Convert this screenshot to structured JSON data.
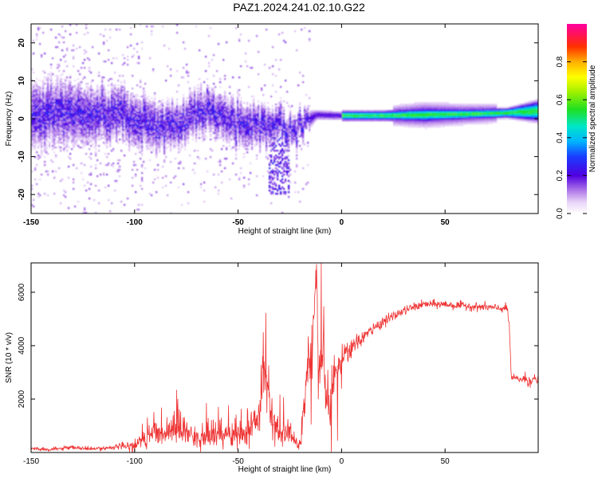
{
  "title": "PAZ1.2024.241.02.10.G22",
  "colors": {
    "snr_line": "#ee3333",
    "ridge_core": "#ff2222",
    "background": "#ffffff"
  },
  "chart_data": [
    {
      "type": "heatmap",
      "xlabel": "Height of straight line (km)",
      "ylabel": "Frequency (Hz)",
      "xlim": [
        -150,
        95
      ],
      "ylim": [
        -25,
        25
      ],
      "xticks": [
        -150,
        -100,
        -50,
        0,
        50
      ],
      "xtick_labels": [
        "-150",
        "-100",
        "-50",
        "0",
        "50"
      ],
      "yticks": [
        -20,
        -10,
        0,
        10,
        20
      ],
      "ytick_labels": [
        "-20",
        "-10",
        "0",
        "10",
        "20"
      ],
      "colorbar": {
        "label": "Normalized spectral amplitude",
        "range": [
          0,
          1
        ],
        "ticks": [
          0.0,
          0.2,
          0.4,
          0.6,
          0.8
        ],
        "tick_labels": [
          "0.0",
          "0.2",
          "0.4",
          "0.6",
          "0.8"
        ],
        "colormap": "rainbow-with-light-purple-low"
      },
      "ridge": [
        {
          "x": -150,
          "f": 1.0,
          "amp": 0.2,
          "spread": 5.0
        },
        {
          "x": -140,
          "f": 1.5,
          "amp": 0.22,
          "spread": 5.0
        },
        {
          "x": -125,
          "f": 1.0,
          "amp": 0.24,
          "spread": 4.5
        },
        {
          "x": -110,
          "f": 1.5,
          "amp": 0.26,
          "spread": 4.0
        },
        {
          "x": -95,
          "f": -1.0,
          "amp": 0.25,
          "spread": 4.0
        },
        {
          "x": -80,
          "f": -2.0,
          "amp": 0.3,
          "spread": 3.5
        },
        {
          "x": -65,
          "f": 2.5,
          "amp": 0.32,
          "spread": 3.5
        },
        {
          "x": -50,
          "f": -1.5,
          "amp": 0.3,
          "spread": 3.5
        },
        {
          "x": -35,
          "f": -2.0,
          "amp": 0.28,
          "spread": 3.0
        },
        {
          "x": -25,
          "f": -3.0,
          "amp": 0.3,
          "spread": 2.5
        },
        {
          "x": -18,
          "f": -1.0,
          "amp": 0.35,
          "spread": 2.0
        },
        {
          "x": -12,
          "f": 1.0,
          "amp": 0.8,
          "spread": 0.8
        },
        {
          "x": 0,
          "f": 0.8,
          "amp": 0.85,
          "spread": 0.7
        },
        {
          "x": 20,
          "f": 0.8,
          "amp": 0.9,
          "spread": 0.7
        },
        {
          "x": 40,
          "f": 1.0,
          "amp": 0.55,
          "spread": 1.0
        },
        {
          "x": 60,
          "f": 1.2,
          "amp": 0.65,
          "spread": 0.8
        },
        {
          "x": 80,
          "f": 1.5,
          "amp": 0.85,
          "spread": 0.7
        },
        {
          "x": 95,
          "f": 2.0,
          "amp": 0.55,
          "spread": 1.5
        }
      ]
    },
    {
      "type": "line",
      "xlabel": "Height of straight line (km)",
      "ylabel": "SNR (10 * v/v)",
      "xlim": [
        -150,
        95
      ],
      "ylim": [
        0,
        7100
      ],
      "xticks": [
        -150,
        -100,
        -50,
        0,
        50
      ],
      "xtick_labels": [
        "-150",
        "-100",
        "-50",
        "0",
        "50"
      ],
      "yticks": [
        2000,
        4000,
        6000
      ],
      "ytick_labels": [
        "2000",
        "4000",
        "6000"
      ],
      "series": [
        {
          "x": [
            -150,
            -140,
            -130,
            -120,
            -110,
            -100,
            -95,
            -90,
            -85,
            -80,
            -75,
            -70,
            -65,
            -60,
            -55,
            -50,
            -45,
            -40,
            -37,
            -34,
            -30,
            -25,
            -20,
            -18,
            -16,
            -14,
            -12,
            -11,
            -10,
            -8,
            -6,
            -4,
            -2,
            0,
            5,
            10,
            15,
            20,
            25,
            30,
            35,
            40,
            45,
            50,
            55,
            60,
            65,
            70,
            75,
            80,
            81,
            82,
            85,
            88,
            90,
            92,
            95
          ],
          "y": [
            150,
            120,
            180,
            130,
            200,
            250,
            450,
            650,
            700,
            800,
            650,
            500,
            550,
            600,
            650,
            550,
            800,
            1400,
            3000,
            1200,
            800,
            700,
            200,
            2000,
            3200,
            4200,
            6600,
            2500,
            4000,
            2800,
            1500,
            2600,
            3000,
            3400,
            3900,
            4300,
            4600,
            4900,
            5100,
            5300,
            5450,
            5550,
            5550,
            5550,
            5500,
            5500,
            5450,
            5450,
            5400,
            5400,
            4800,
            2800,
            2750,
            2750,
            2700,
            2750,
            2700
          ],
          "noise_amplitude": [
            80,
            60,
            70,
            60,
            80,
            200,
            300,
            400,
            400,
            450,
            400,
            350,
            350,
            350,
            350,
            350,
            500,
            700,
            900,
            600,
            500,
            450,
            150,
            800,
            1000,
            1200,
            700,
            1000,
            1200,
            1000,
            900,
            800,
            700,
            600,
            300,
            250,
            200,
            180,
            160,
            150,
            140,
            140,
            140,
            140,
            140,
            140,
            140,
            140,
            140,
            140,
            140,
            120,
            120,
            200,
            300,
            200,
            150
          ]
        }
      ]
    }
  ]
}
